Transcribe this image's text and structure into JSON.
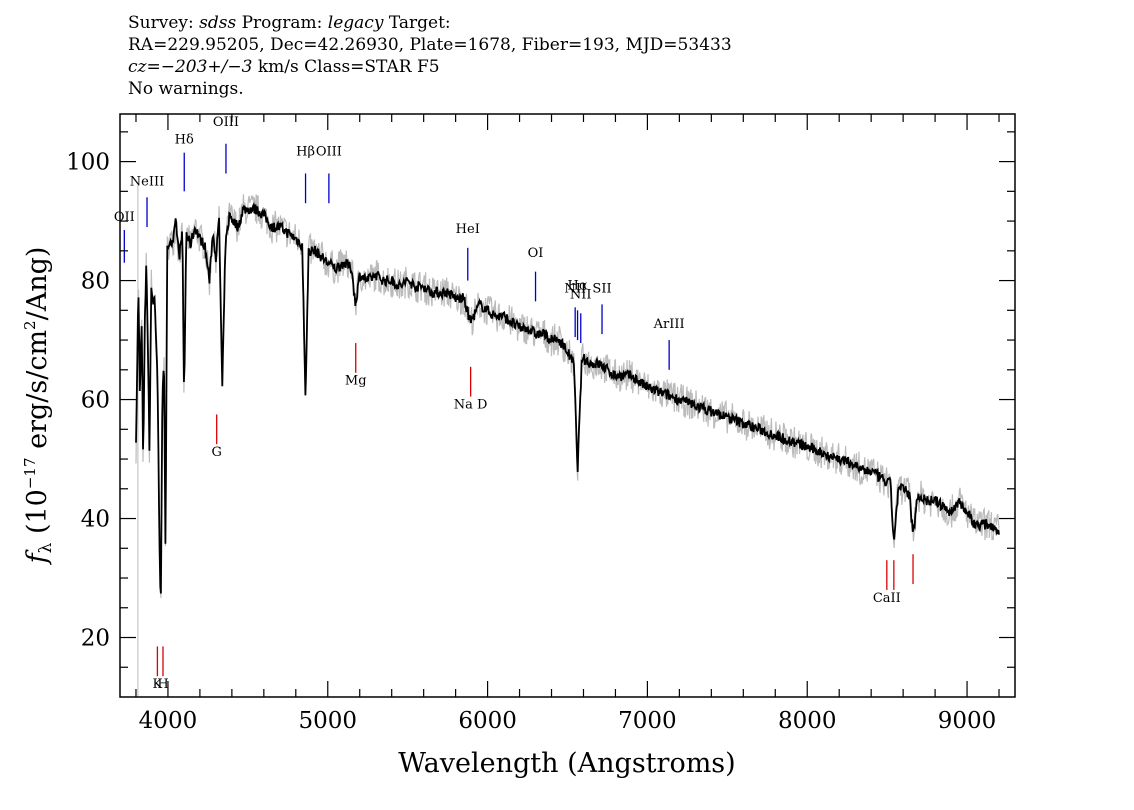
{
  "header": {
    "line1": {
      "survey_label": "Survey:",
      "survey": "sdss",
      "program_label": "Program:",
      "program": "legacy",
      "target_label": "Target:"
    },
    "line2": "RA=229.95205, Dec=42.26930, Plate=1678, Fiber=193, MJD=53433",
    "line3": {
      "cz_label": "cz",
      "cz_value": "=−203+/−3",
      "cz_unit": "km/s Class=STAR F5"
    },
    "line4": "No warnings."
  },
  "chart_data": {
    "type": "line",
    "xlabel": "Wavelength (Angstroms)",
    "ylabel": "f_λ (10^-17 erg/s/cm^2/Ang)",
    "xlim": [
      3700,
      9300
    ],
    "ylim": [
      10,
      108
    ],
    "xticks": [
      4000,
      5000,
      6000,
      7000,
      8000,
      9000
    ],
    "yticks": [
      20,
      40,
      60,
      80,
      100
    ],
    "colors": {
      "flux": "#000000",
      "error": "#bbbbbb",
      "emission": "#0000cc",
      "absorption": "#dd0000"
    },
    "series": [
      {
        "x": [
          3800,
          3815,
          3825,
          3835,
          3845,
          3855,
          3865,
          3875,
          3885,
          3895,
          3905,
          3915,
          3925,
          3935,
          3945,
          3955,
          3965,
          3975,
          3985,
          3995,
          4010,
          4030,
          4050,
          4070,
          4090,
          4101,
          4115,
          4140,
          4170,
          4200,
          4230,
          4260,
          4280,
          4300,
          4320,
          4340,
          4360,
          4385,
          4410,
          4440,
          4470,
          4500,
          4550,
          4600,
          4650,
          4700,
          4750,
          4800,
          4840,
          4861,
          4880,
          4920,
          4960,
          5000,
          5050,
          5100,
          5150,
          5173,
          5200,
          5250,
          5300,
          5350,
          5400,
          5450,
          5500,
          5550,
          5600,
          5650,
          5700,
          5750,
          5800,
          5850,
          5893,
          5950,
          6000,
          6050,
          6100,
          6150,
          6200,
          6250,
          6300,
          6350,
          6400,
          6450,
          6500,
          6540,
          6563,
          6590,
          6650,
          6700,
          6750,
          6800,
          6900,
          7000,
          7100,
          7200,
          7300,
          7400,
          7500,
          7600,
          7700,
          7800,
          7900,
          8000,
          8100,
          8200,
          8300,
          8350,
          8400,
          8450,
          8498,
          8520,
          8542,
          8570,
          8600,
          8640,
          8662,
          8690,
          8750,
          8800,
          8850,
          8900,
          8950,
          9000,
          9050,
          9100,
          9150,
          9200
        ],
        "y": [
          52,
          79,
          60,
          75,
          49,
          72,
          84,
          68,
          50,
          80,
          76,
          78,
          71,
          63,
          40,
          24,
          60,
          68,
          32,
          85,
          87,
          86,
          90,
          84,
          88,
          60,
          88,
          86,
          89,
          87,
          86,
          80,
          88,
          84,
          90,
          62,
          86,
          91,
          90,
          89,
          92,
          92,
          92,
          91,
          89,
          89,
          88,
          87,
          86,
          60,
          85,
          85,
          84,
          83,
          82,
          83,
          82,
          76,
          81,
          80,
          81,
          80,
          80,
          79,
          80,
          79,
          79,
          78,
          78,
          78,
          77,
          77,
          73,
          76,
          75,
          74,
          74,
          73,
          72,
          72,
          71,
          71,
          70,
          70,
          68,
          66,
          48,
          67,
          66,
          66,
          65,
          64,
          64,
          62,
          61,
          60,
          59,
          58,
          57,
          56,
          55,
          54,
          53,
          52,
          51,
          50,
          49,
          48,
          48,
          47,
          46,
          46,
          36,
          45,
          45,
          44,
          37,
          44,
          43,
          43,
          42,
          41,
          43,
          41,
          39,
          39,
          39,
          38
        ]
      }
    ],
    "lines": [
      {
        "label": "Hδ",
        "x": 4102,
        "kind": "emission",
        "y0": 95,
        "y1": 101.5,
        "label_y": 103
      },
      {
        "label": "OIII",
        "x": 4363,
        "kind": "emission",
        "y0": 98,
        "y1": 103,
        "label_y": 106
      },
      {
        "label": "NeIII",
        "x": 3869,
        "kind": "emission",
        "y0": 89,
        "y1": 94,
        "label_y": 96
      },
      {
        "label": "OII",
        "x": 3727,
        "kind": "emission",
        "y0": 83,
        "y1": 88.5,
        "label_y": 90
      },
      {
        "label": "Hβ",
        "x": 4861,
        "kind": "emission",
        "y0": 93,
        "y1": 98,
        "label_y": 101
      },
      {
        "label": "OIII",
        "x": 5007,
        "kind": "emission",
        "y0": 93,
        "y1": 98,
        "label_y": 101
      },
      {
        "label": "HeI",
        "x": 5876,
        "kind": "emission",
        "y0": 80,
        "y1": 85.5,
        "label_y": 88
      },
      {
        "label": "OI",
        "x": 6300,
        "kind": "emission",
        "y0": 76.5,
        "y1": 81.5,
        "label_y": 84
      },
      {
        "label": "NII",
        "x": 6548,
        "kind": "emission",
        "y0": 70.5,
        "y1": 75.5,
        "label_y": 78
      },
      {
        "label": "Hα",
        "x": 6563,
        "kind": "emission",
        "y0": 70,
        "y1": 75,
        "label_y": 78.5
      },
      {
        "label": "NII",
        "x": 6583,
        "kind": "emission",
        "y0": 69.5,
        "y1": 74.5,
        "label_y": 77
      },
      {
        "label": "SII",
        "x": 6716,
        "kind": "emission",
        "y0": 71,
        "y1": 76,
        "label_y": 78
      },
      {
        "label": "ArIII",
        "x": 7136,
        "kind": "emission",
        "y0": 65,
        "y1": 70,
        "label_y": 72
      },
      {
        "label": "K",
        "x": 3934,
        "kind": "absorption",
        "y0": 13.5,
        "y1": 18.5,
        "label_y": 11.5
      },
      {
        "label": "H",
        "x": 3969,
        "kind": "absorption",
        "y0": 13.5,
        "y1": 18.5,
        "label_y": 11.5
      },
      {
        "label": "G",
        "x": 4305,
        "kind": "absorption",
        "y0": 52.5,
        "y1": 57.5,
        "label_y": 50.5
      },
      {
        "label": "Mg",
        "x": 5175,
        "kind": "absorption",
        "y0": 64.5,
        "y1": 69.5,
        "label_y": 62.5
      },
      {
        "label": "Na D",
        "x": 5894,
        "kind": "absorption",
        "y0": 60.5,
        "y1": 65.5,
        "label_y": 58.5
      },
      {
        "label": "CaII",
        "x": 8498,
        "kind": "absorption",
        "y0": 28,
        "y1": 33,
        "label_y": 26
      },
      {
        "label": "",
        "x": 8542,
        "kind": "absorption",
        "y0": 28,
        "y1": 33,
        "label_y": 26
      },
      {
        "label": "",
        "x": 8662,
        "kind": "absorption",
        "y0": 29,
        "y1": 34,
        "label_y": 26
      }
    ]
  }
}
